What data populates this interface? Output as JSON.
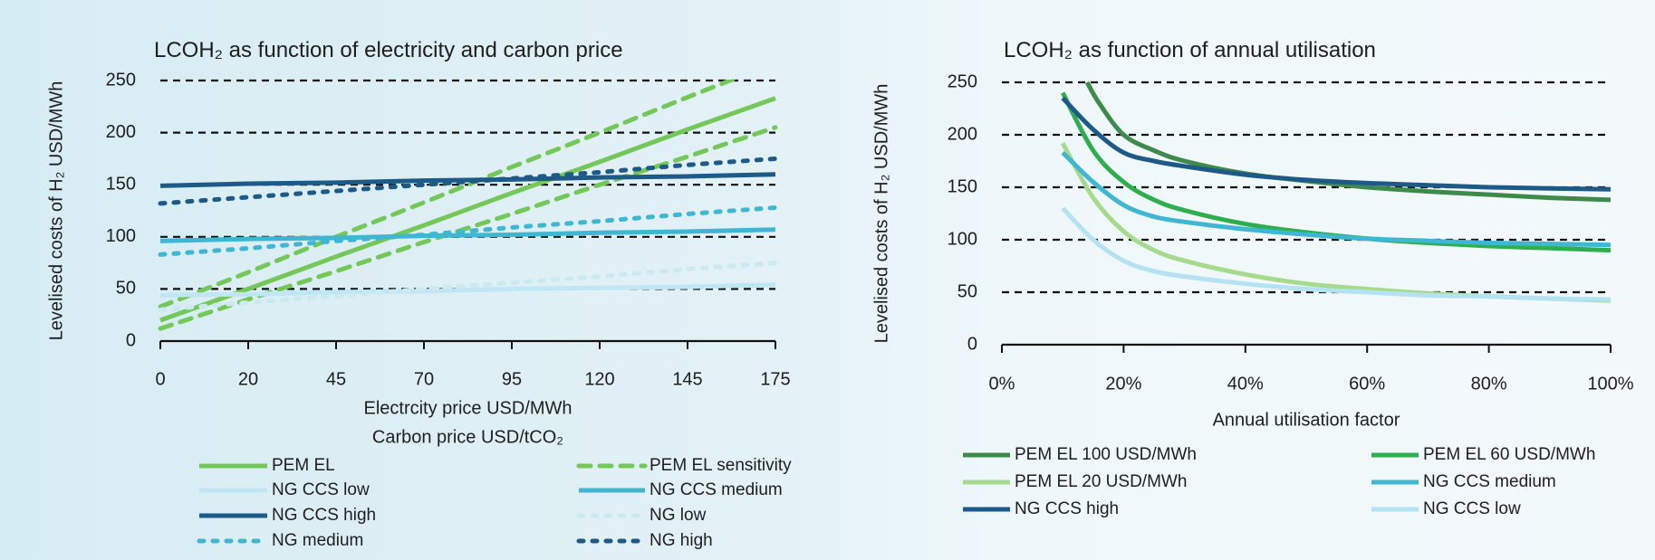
{
  "chart_data": [
    {
      "type": "line",
      "title": "LCOH₂ as function of electricity and carbon price",
      "ylabel": "Levelised costs of H₂ USD/MWh",
      "xlabel": [
        "Electrcity price USD/MWh",
        "Carbon price USD/tCO₂"
      ],
      "categories": [
        "0",
        "20",
        "45",
        "70",
        "95",
        "120",
        "145",
        "175"
      ],
      "ylim": [
        0,
        250
      ],
      "yticks": [
        "0",
        "50",
        "100",
        "150",
        "200",
        "250"
      ],
      "grid": "dashed horizontal",
      "legend": "bottom, two columns",
      "series": [
        {
          "name": "PEM EL",
          "color": "#74c85a",
          "style": "solid",
          "values": [
            20,
            50,
            81,
            111,
            142,
            172,
            203,
            233
          ]
        },
        {
          "name": "PEM EL sensitivity",
          "color": "#74c85a",
          "style": "dashed",
          "values": [
            33,
            66,
            100,
            133,
            167,
            200,
            234,
            267
          ],
          "values_2": [
            12,
            40,
            67,
            95,
            122,
            150,
            177,
            205
          ]
        },
        {
          "name": "NG CCS low",
          "color": "#bfe6f4",
          "style": "solid",
          "values": [
            44,
            45,
            47,
            48,
            50,
            51,
            52,
            54
          ]
        },
        {
          "name": "NG CCS medium",
          "color": "#3fb6d2",
          "style": "solid",
          "values": [
            96,
            98,
            99,
            101,
            102,
            104,
            105,
            107
          ]
        },
        {
          "name": "NG CCS high",
          "color": "#1d5a87",
          "style": "solid",
          "values": [
            149,
            151,
            152,
            154,
            155,
            157,
            158,
            160
          ]
        },
        {
          "name": "NG low",
          "color": "#cbe9ee",
          "style": "dotted",
          "values": [
            30,
            37,
            43,
            50,
            56,
            62,
            69,
            75
          ]
        },
        {
          "name": "NG medium",
          "color": "#3fb6d2",
          "style": "dotted",
          "values": [
            83,
            89,
            96,
            102,
            109,
            115,
            122,
            128
          ]
        },
        {
          "name": "NG high",
          "color": "#1d5a87",
          "style": "dotted",
          "values": [
            132,
            138,
            144,
            150,
            156,
            162,
            169,
            175
          ]
        }
      ]
    },
    {
      "type": "line",
      "title": "LCOH₂ as function of annual utilisation",
      "ylabel": "Levelised costs of H₂ USD/MWh",
      "xlabel": "Annual utilisation factor",
      "xticks": [
        "0%",
        "20%",
        "40%",
        "60%",
        "80%",
        "100%"
      ],
      "xlim": [
        0,
        100
      ],
      "ylim": [
        0,
        250
      ],
      "yticks": [
        "0",
        "50",
        "100",
        "150",
        "200",
        "250"
      ],
      "grid": "dashed horizontal",
      "legend": "bottom, two columns",
      "x": [
        10,
        15,
        20,
        25,
        30,
        40,
        50,
        60,
        70,
        80,
        90,
        100
      ],
      "series": [
        {
          "name": "PEM EL 100 USD/MWh",
          "color": "#3e8a4b",
          "style": "solid",
          "x": [
            14,
            16,
            20,
            25,
            30,
            40,
            50,
            60,
            70,
            80,
            90,
            100
          ],
          "values": [
            250,
            230,
            200,
            185,
            175,
            163,
            156,
            150,
            146,
            143,
            140,
            138
          ]
        },
        {
          "name": "PEM EL 60 USD/MWh",
          "color": "#2fae4e",
          "style": "solid",
          "values": [
            240,
            185,
            155,
            138,
            128,
            115,
            107,
            101,
            97,
            94,
            92,
            90
          ]
        },
        {
          "name": "PEM EL 20 USD/MWh",
          "color": "#a6db8e",
          "style": "solid",
          "values": [
            192,
            140,
            108,
            90,
            80,
            67,
            58,
            53,
            49,
            46,
            44,
            42
          ]
        },
        {
          "name": "NG CCS medium",
          "color": "#3fb6d2",
          "style": "solid",
          "values": [
            183,
            155,
            133,
            122,
            117,
            110,
            105,
            101,
            99,
            97,
            96,
            95
          ]
        },
        {
          "name": "NG CCS high",
          "color": "#1d5a87",
          "style": "solid",
          "values": [
            235,
            205,
            183,
            175,
            170,
            162,
            157,
            154,
            152,
            150,
            149,
            148
          ]
        },
        {
          "name": "NG CCS low",
          "color": "#b5e2f3",
          "style": "solid",
          "values": [
            130,
            100,
            80,
            70,
            65,
            58,
            53,
            50,
            47,
            46,
            44,
            43
          ]
        }
      ]
    }
  ]
}
